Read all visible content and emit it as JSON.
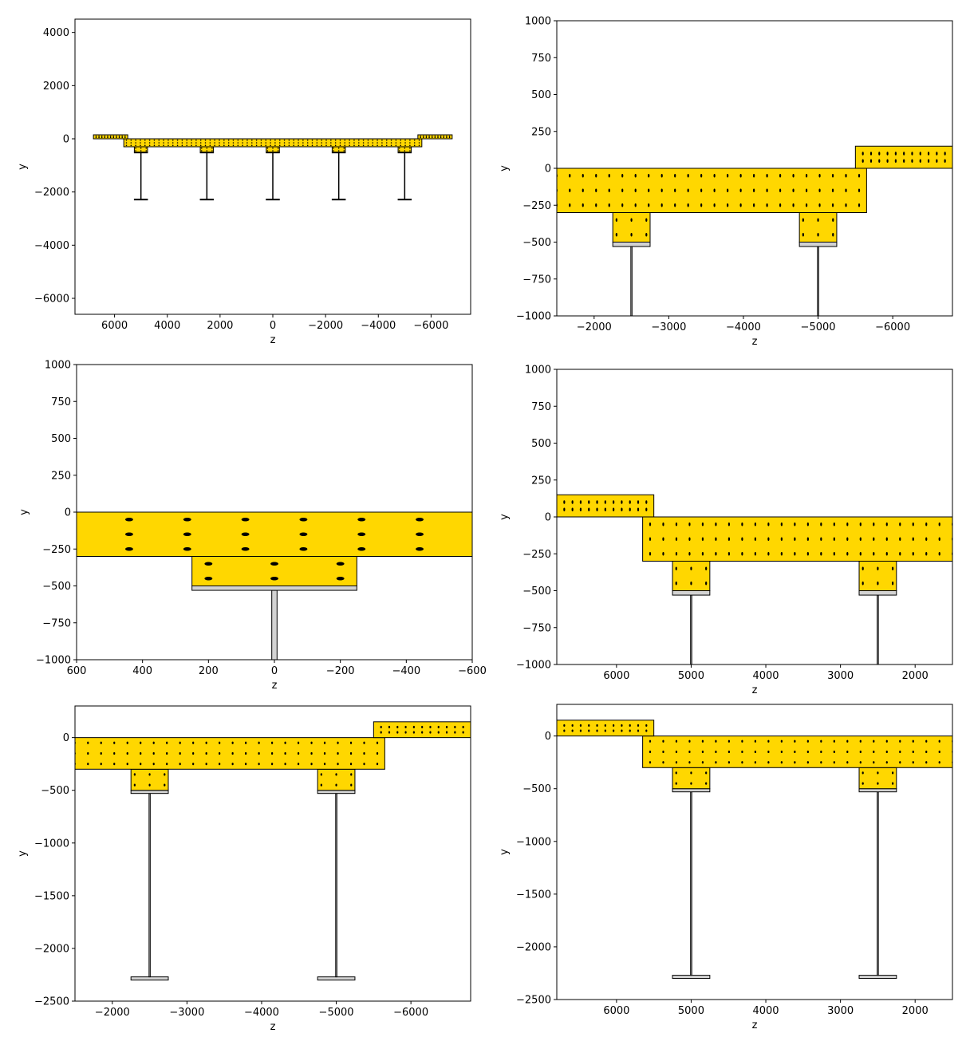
{
  "colors": {
    "concrete": "#FFD700",
    "steel": "#D3D3D3",
    "outline": "#000000",
    "rebar": "#000000"
  },
  "chart_data": [
    {
      "type": "cross-section",
      "panel": "full-section",
      "xlabel": "z",
      "ylabel": "y",
      "xlim": [
        7500,
        -7500
      ],
      "ylim": [
        -6600,
        4500
      ],
      "xticks": [
        6000,
        4000,
        2000,
        0,
        -2000,
        -4000,
        -6000
      ],
      "xtick_labels": [
        "6000",
        "4000",
        "2000",
        "0",
        "−2000",
        "−4000",
        "−6000"
      ],
      "yticks": [
        4000,
        2000,
        0,
        -2000,
        -4000,
        -6000
      ],
      "ytick_labels": [
        "4000",
        "2000",
        "0",
        "−2000",
        "−4000",
        "−6000"
      ]
    },
    {
      "type": "cross-section",
      "panel": "detail-right",
      "xlabel": "z",
      "ylabel": "y",
      "xlim": [
        -1500,
        -6800
      ],
      "ylim": [
        -1000,
        1000
      ],
      "xticks": [
        -2000,
        -3000,
        -4000,
        -5000,
        -6000
      ],
      "xtick_labels": [
        "−2000",
        "−3000",
        "−4000",
        "−5000",
        "−6000"
      ],
      "yticks": [
        1000,
        750,
        500,
        250,
        0,
        -250,
        -500,
        -750,
        -1000
      ],
      "ytick_labels": [
        "1000",
        "750",
        "500",
        "250",
        "0",
        "−250",
        "−500",
        "−750",
        "−1000"
      ]
    },
    {
      "type": "cross-section",
      "panel": "detail-center",
      "xlabel": "z",
      "ylabel": "y",
      "xlim": [
        600,
        -600
      ],
      "ylim": [
        -1000,
        1000
      ],
      "xticks": [
        600,
        400,
        200,
        0,
        -200,
        -400,
        -600
      ],
      "xtick_labels": [
        "600",
        "400",
        "200",
        "0",
        "−200",
        "−400",
        "−600"
      ],
      "yticks": [
        1000,
        750,
        500,
        250,
        0,
        -250,
        -500,
        -750,
        -1000
      ],
      "ytick_labels": [
        "1000",
        "750",
        "500",
        "250",
        "0",
        "−250",
        "−500",
        "−750",
        "−1000"
      ]
    },
    {
      "type": "cross-section",
      "panel": "detail-left",
      "xlabel": "z",
      "ylabel": "y",
      "xlim": [
        6800,
        1500
      ],
      "ylim": [
        -1000,
        1000
      ],
      "xticks": [
        6000,
        5000,
        4000,
        3000,
        2000
      ],
      "xtick_labels": [
        "6000",
        "5000",
        "4000",
        "3000",
        "2000"
      ],
      "yticks": [
        1000,
        750,
        500,
        250,
        0,
        -250,
        -500,
        -750,
        -1000
      ],
      "ytick_labels": [
        "1000",
        "750",
        "500",
        "250",
        "0",
        "−250",
        "−500",
        "−750",
        "−1000"
      ]
    },
    {
      "type": "cross-section",
      "panel": "girders-right",
      "xlabel": "z",
      "ylabel": "y",
      "xlim": [
        -1500,
        -6800
      ],
      "ylim": [
        -2500,
        300
      ],
      "xticks": [
        -2000,
        -3000,
        -4000,
        -5000,
        -6000
      ],
      "xtick_labels": [
        "−2000",
        "−3000",
        "−4000",
        "−5000",
        "−6000"
      ],
      "yticks": [
        0,
        -500,
        -1000,
        -1500,
        -2000,
        -2500
      ],
      "ytick_labels": [
        "0",
        "−500",
        "−1000",
        "−1500",
        "−2000",
        "−2500"
      ]
    },
    {
      "type": "cross-section",
      "panel": "girders-left",
      "xlabel": "z",
      "ylabel": "y",
      "xlim": [
        6800,
        1500
      ],
      "ylim": [
        -2500,
        300
      ],
      "xticks": [
        6000,
        5000,
        4000,
        3000,
        2000
      ],
      "xtick_labels": [
        "6000",
        "5000",
        "4000",
        "3000",
        "2000"
      ],
      "yticks": [
        0,
        -500,
        -1000,
        -1500,
        -2000,
        -2500
      ],
      "ytick_labels": [
        "0",
        "−500",
        "−1000",
        "−1500",
        "−2000",
        "−2500"
      ]
    }
  ]
}
